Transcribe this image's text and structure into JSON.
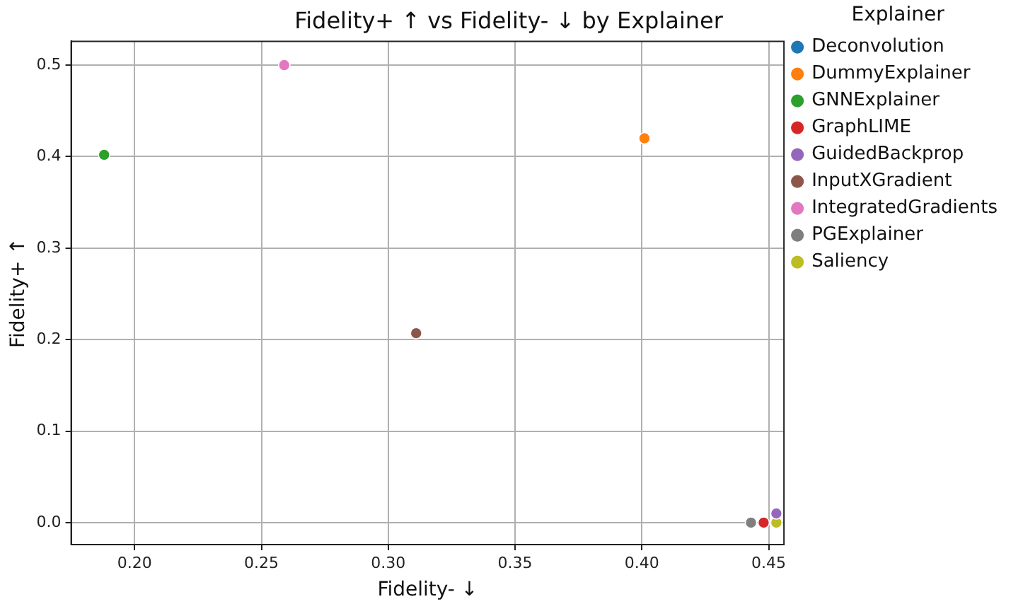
{
  "chart_data": {
    "type": "scatter",
    "title": "Fidelity+ ↑ vs Fidelity- ↓ by Explainer",
    "xlabel": "Fidelity- ↓",
    "ylabel": "Fidelity+ ↑",
    "legend_title": "Explainer",
    "series": [
      {
        "name": "Deconvolution",
        "color": "#1f77b4",
        "x": [
          null
        ],
        "values": [
          null
        ]
      },
      {
        "name": "DummyExplainer",
        "color": "#ff7f0e",
        "x": [
          0.401
        ],
        "values": [
          0.42
        ]
      },
      {
        "name": "GNNExplainer",
        "color": "#2ca02c",
        "x": [
          0.188
        ],
        "values": [
          0.402
        ]
      },
      {
        "name": "GraphLIME",
        "color": "#d62728",
        "x": [
          0.448
        ],
        "values": [
          0
        ]
      },
      {
        "name": "GuidedBackprop",
        "color": "#9467bd",
        "x": [
          0.453
        ],
        "values": [
          0.01
        ]
      },
      {
        "name": "InputXGradient",
        "color": "#8c564b",
        "x": [
          0.311
        ],
        "values": [
          0.207
        ]
      },
      {
        "name": "IntegratedGradients",
        "color": "#e377c2",
        "x": [
          0.259
        ],
        "values": [
          0.5
        ]
      },
      {
        "name": "PGExplainer",
        "color": "#7f7f7f",
        "x": [
          0.443
        ],
        "values": [
          0
        ]
      },
      {
        "name": "Saliency",
        "color": "#bcbd22",
        "x": [
          0.453
        ],
        "values": [
          0
        ]
      }
    ],
    "xlim": [
      0.175,
      0.456
    ],
    "xticks": [
      {
        "value": 0.2,
        "label": "0.20"
      },
      {
        "value": 0.25,
        "label": "0.25"
      },
      {
        "value": 0.3,
        "label": "0.30"
      },
      {
        "value": 0.35,
        "label": "0.35"
      },
      {
        "value": 0.4,
        "label": "0.40"
      },
      {
        "value": 0.45,
        "label": "0.45"
      }
    ],
    "ylim": [
      -0.024,
      0.526
    ],
    "yticks": [
      {
        "value": 0,
        "label": "0.0"
      },
      {
        "value": 0.1,
        "label": "0.1"
      },
      {
        "value": 0.2,
        "label": "0.2"
      },
      {
        "value": 0.3,
        "label": "0.3"
      },
      {
        "value": 0.4,
        "label": "0.4"
      },
      {
        "value": 0.5,
        "label": "0.5"
      }
    ],
    "grid": true,
    "legend": "right",
    "marker": "circle"
  }
}
